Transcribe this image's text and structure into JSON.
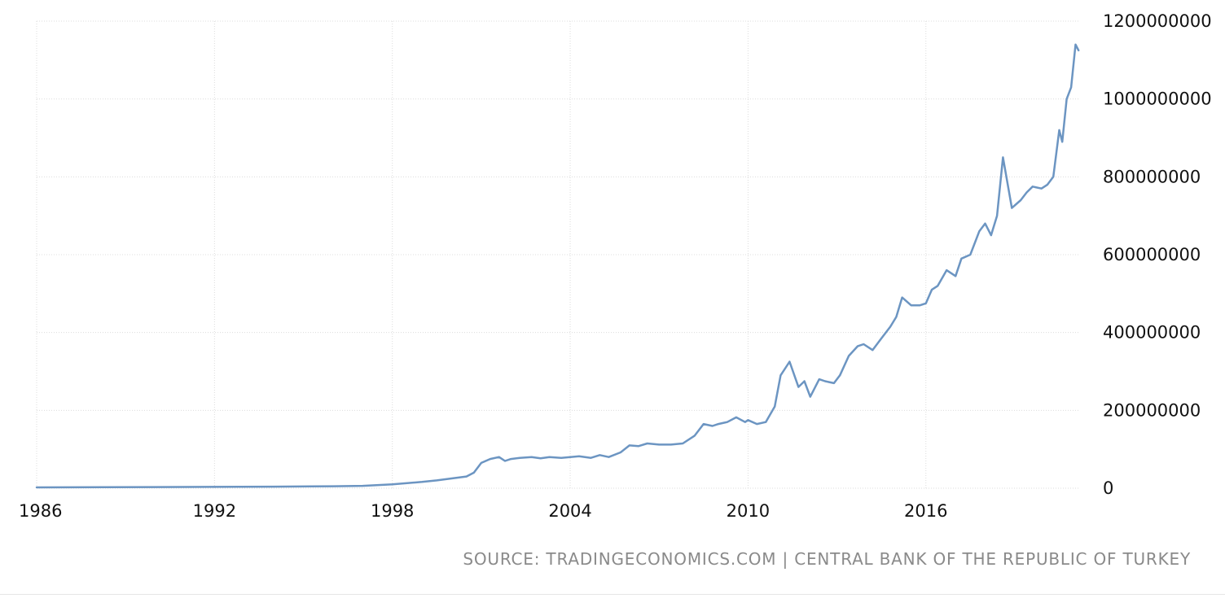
{
  "chart_data": {
    "type": "line",
    "title": "",
    "xlabel": "",
    "ylabel": "",
    "x_ticks": [
      "1986",
      "1992",
      "1998",
      "2004",
      "2010",
      "2016"
    ],
    "y_ticks": [
      "0",
      "200000000",
      "400000000",
      "600000000",
      "800000000",
      "1000000000",
      "1200000000"
    ],
    "xlim": [
      1986,
      2021.2
    ],
    "ylim": [
      0,
      1200000000
    ],
    "grid": true,
    "legend": "none",
    "colors": {
      "line": "#6c95c2",
      "grid": "#dcdcdc",
      "text": "#111111",
      "source": "#8a8a8a"
    },
    "series": [
      {
        "x": [
          1986,
          1990,
          1994,
          1996,
          1997,
          1998,
          1999,
          1999.5,
          2000,
          2000.5,
          2000.75,
          2001,
          2001.3,
          2001.6,
          2001.8,
          2002,
          2002.3,
          2002.7,
          2003,
          2003.3,
          2003.7,
          2004,
          2004.3,
          2004.7,
          2005,
          2005.3,
          2005.7,
          2006,
          2006.3,
          2006.6,
          2007,
          2007.4,
          2007.8,
          2008.2,
          2008.5,
          2008.8,
          2009,
          2009.3,
          2009.6,
          2009.9,
          2010,
          2010.3,
          2010.6,
          2010.9,
          2011.1,
          2011.4,
          2011.7,
          2011.9,
          2012.1,
          2012.4,
          2012.6,
          2012.9,
          2013.1,
          2013.4,
          2013.7,
          2013.9,
          2014.2,
          2014.5,
          2014.8,
          2015,
          2015.2,
          2015.5,
          2015.8,
          2016,
          2016.2,
          2016.4,
          2016.7,
          2017,
          2017.2,
          2017.5,
          2017.8,
          2018,
          2018.2,
          2018.4,
          2018.6,
          2018.9,
          2019.2,
          2019.4,
          2019.6,
          2019.9,
          2020.1,
          2020.3,
          2020.5,
          2020.6,
          2020.75,
          2020.9,
          2021.05,
          2021.15
        ],
        "y": [
          2000000,
          3000000,
          4000000,
          5000000,
          6000000,
          10000000,
          16000000,
          20000000,
          25000000,
          30000000,
          40000000,
          65000000,
          75000000,
          80000000,
          70000000,
          75000000,
          78000000,
          80000000,
          77000000,
          80000000,
          78000000,
          80000000,
          82000000,
          78000000,
          85000000,
          80000000,
          92000000,
          110000000,
          108000000,
          115000000,
          112000000,
          112000000,
          115000000,
          135000000,
          165000000,
          160000000,
          165000000,
          170000000,
          182000000,
          170000000,
          175000000,
          165000000,
          170000000,
          210000000,
          290000000,
          325000000,
          260000000,
          275000000,
          235000000,
          280000000,
          275000000,
          270000000,
          290000000,
          340000000,
          365000000,
          370000000,
          355000000,
          385000000,
          415000000,
          440000000,
          490000000,
          470000000,
          470000000,
          475000000,
          510000000,
          520000000,
          560000000,
          545000000,
          590000000,
          600000000,
          660000000,
          680000000,
          650000000,
          700000000,
          850000000,
          720000000,
          740000000,
          760000000,
          775000000,
          770000000,
          780000000,
          800000000,
          920000000,
          890000000,
          1000000000,
          1030000000,
          1140000000,
          1125000000
        ]
      }
    ]
  },
  "source_text": "SOURCE: TRADINGECONOMICS.COM | CENTRAL BANK OF THE REPUBLIC OF TURKEY"
}
